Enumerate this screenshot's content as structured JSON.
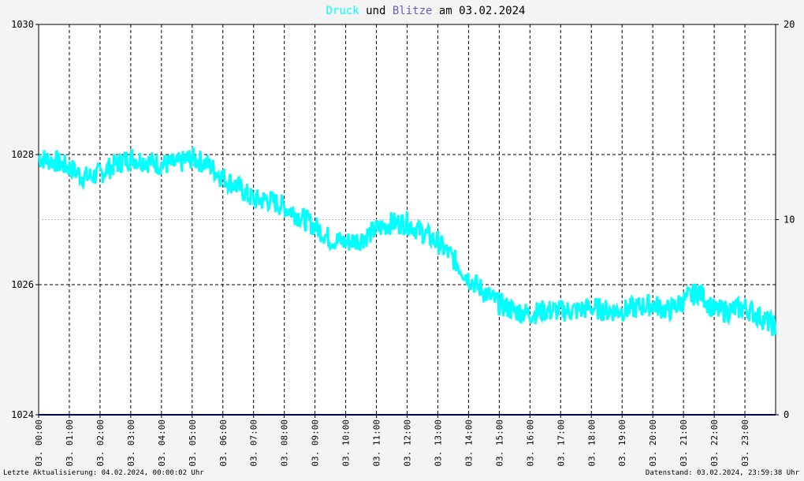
{
  "chart_data": {
    "type": "line",
    "title_parts": [
      {
        "text": "Druck",
        "color": "#00ffff"
      },
      {
        "text": " und ",
        "color": "#000000"
      },
      {
        "text": "Blitze",
        "color": "#6a5acd"
      },
      {
        "text": " am 03.02.2024",
        "color": "#000000"
      }
    ],
    "left_axis": {
      "ylim": [
        1024,
        1030
      ],
      "ticks": [
        "1024",
        "1026",
        "1028",
        "1030"
      ]
    },
    "right_axis": {
      "ylim": [
        0,
        20
      ],
      "ticks": [
        "0",
        "10",
        "20"
      ]
    },
    "x_ticks": [
      "03. 00:00",
      "03. 01:00",
      "03. 02:00",
      "03. 03:00",
      "03. 04:00",
      "03. 05:00",
      "03. 06:00",
      "03. 07:00",
      "03. 08:00",
      "03. 09:00",
      "03. 10:00",
      "03. 11:00",
      "03. 12:00",
      "03. 13:00",
      "03. 14:00",
      "03. 15:00",
      "03. 16:00",
      "03. 17:00",
      "03. 18:00",
      "03. 19:00",
      "03. 20:00",
      "03. 21:00",
      "03. 22:00",
      "03. 23:00"
    ],
    "series": [
      {
        "name": "Druck",
        "color": "#00ffff",
        "axis": "left",
        "x_hours": [
          0,
          0.5,
          1,
          1.5,
          2,
          2.5,
          3,
          3.5,
          4,
          4.5,
          5,
          5.5,
          6,
          6.5,
          7,
          7.5,
          8,
          8.5,
          9,
          9.5,
          10,
          10.5,
          11,
          11.5,
          12,
          12.5,
          13,
          13.5,
          14,
          14.5,
          15,
          15.5,
          16,
          16.5,
          17,
          17.5,
          18,
          18.5,
          19,
          19.5,
          20,
          20.5,
          21,
          21.5,
          22,
          22.5,
          23,
          23.5,
          23.99
        ],
        "values": [
          1027.95,
          1027.9,
          1027.8,
          1027.65,
          1027.7,
          1027.85,
          1027.95,
          1027.9,
          1027.85,
          1027.85,
          1027.95,
          1027.85,
          1027.65,
          1027.5,
          1027.3,
          1027.3,
          1027.2,
          1027.05,
          1026.9,
          1026.7,
          1026.65,
          1026.7,
          1026.85,
          1026.95,
          1026.95,
          1026.8,
          1026.65,
          1026.4,
          1026.1,
          1025.9,
          1025.7,
          1025.6,
          1025.55,
          1025.6,
          1025.6,
          1025.6,
          1025.65,
          1025.6,
          1025.6,
          1025.65,
          1025.7,
          1025.6,
          1025.75,
          1025.9,
          1025.6,
          1025.6,
          1025.65,
          1025.5,
          1025.35
        ]
      },
      {
        "name": "Blitze",
        "color": "#000080",
        "axis": "right",
        "x_hours": [
          0,
          24
        ],
        "values": [
          0,
          0
        ]
      }
    ]
  },
  "footer": {
    "left": "Letzte Aktualisierung: 04.02.2024, 00:00:02 Uhr",
    "right": "Datenstand: 03.02.2024, 23:59:38 Uhr"
  }
}
